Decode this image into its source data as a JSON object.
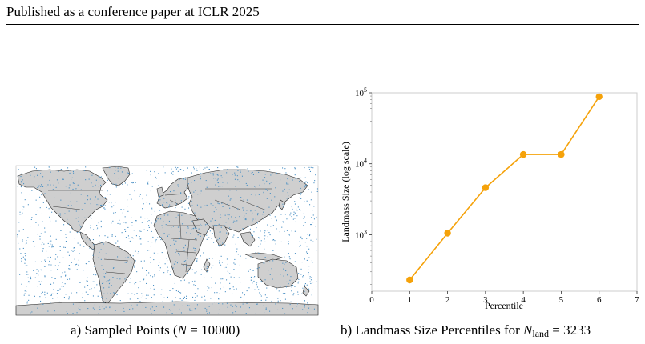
{
  "header": {
    "text": "Published as a conference paper at ICLR 2025"
  },
  "colors": {
    "land": "#cfcfcf",
    "border": "#222222",
    "points": "#4a90c4",
    "line": "#f5a20a"
  },
  "figure_a": {
    "caption_prefix": "a) Sampled Points (",
    "caption_var": "N",
    "caption_suffix": " = 10000)"
  },
  "figure_b": {
    "caption_prefix": "b) Landmass Size Percentiles for ",
    "caption_var": "N",
    "caption_sub": "land",
    "caption_suffix": " = 3233"
  },
  "chart_data": {
    "type": "line",
    "x": [
      1,
      2,
      3,
      4,
      5,
      6
    ],
    "y": [
      230,
      1050,
      4600,
      13500,
      13500,
      88000
    ],
    "xlabel": "Percentile",
    "ylabel": "Landmass Size (log scale)",
    "xlim": [
      0,
      7
    ],
    "ylim": [
      160,
      100000
    ],
    "yscale": "log",
    "xticks": [
      0,
      1,
      2,
      3,
      4,
      5,
      6,
      7
    ],
    "yticks": [
      {
        "value": 1000,
        "base": "10",
        "exp": "3"
      },
      {
        "value": 10000,
        "base": "10",
        "exp": "4"
      },
      {
        "value": 100000,
        "base": "10",
        "exp": "5"
      }
    ],
    "grid": false,
    "marker": "circle"
  }
}
